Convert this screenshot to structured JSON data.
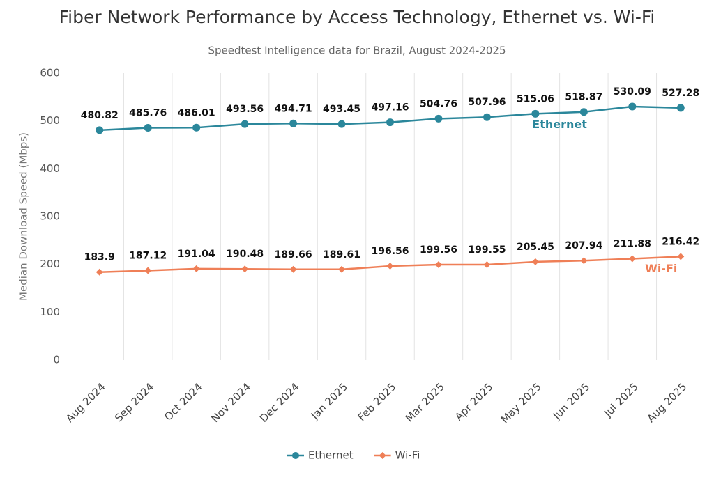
{
  "chart_data": {
    "type": "line",
    "title": "Fiber Network Performance by Access Technology, Ethernet vs. Wi-Fi",
    "subtitle": "Speedtest Intelligence data for Brazil, August 2024-2025",
    "y_label": "Median Download Speed (Mbps)",
    "categories": [
      "Aug 2024",
      "Sep 2024",
      "Oct 2024",
      "Nov 2024",
      "Dec 2024",
      "Jan 2025",
      "Feb 2025",
      "Mar 2025",
      "Apr 2025",
      "May 2025",
      "Jun 2025",
      "Jul 2025",
      "Aug 2025"
    ],
    "series": [
      {
        "name": "Ethernet",
        "color": "#2b879b",
        "marker": "circle",
        "values": [
          480.82,
          485.76,
          486.01,
          493.56,
          494.71,
          493.45,
          497.16,
          504.76,
          507.96,
          515.06,
          518.87,
          530.09,
          527.28
        ]
      },
      {
        "name": "Wi-Fi",
        "color": "#ef7f57",
        "marker": "diamond",
        "values": [
          183.9,
          187.12,
          191.04,
          190.48,
          189.66,
          189.61,
          196.56,
          199.56,
          199.55,
          205.45,
          207.94,
          211.88,
          216.42
        ]
      }
    ],
    "ylim": [
      0,
      600
    ],
    "yticks": [
      0,
      100,
      200,
      300,
      400,
      500,
      600
    ],
    "grid": true,
    "legend": "bottom"
  }
}
